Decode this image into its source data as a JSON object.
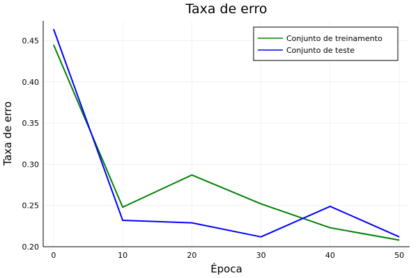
{
  "chart_data": {
    "type": "line",
    "title": "Taxa de erro",
    "xlabel": "Época",
    "ylabel": "Taxa de erro",
    "x": [
      0,
      10,
      20,
      30,
      40,
      50
    ],
    "xticks": [
      "0",
      "10",
      "20",
      "30",
      "40",
      "50"
    ],
    "yticks": [
      "0.20",
      "0.25",
      "0.30",
      "0.35",
      "0.40",
      "0.45"
    ],
    "xlim": [
      -1.5,
      51.5
    ],
    "ylim": [
      0.2,
      0.474
    ],
    "grid": true,
    "legend_position": "top-right",
    "series": [
      {
        "name": "Conjunto de treinamento",
        "color": "#008000",
        "values": [
          0.445,
          0.248,
          0.287,
          0.252,
          0.223,
          0.208
        ]
      },
      {
        "name": "Conjunto de teste",
        "color": "#0000ff",
        "values": [
          0.464,
          0.232,
          0.229,
          0.212,
          0.249,
          0.212
        ]
      }
    ]
  }
}
